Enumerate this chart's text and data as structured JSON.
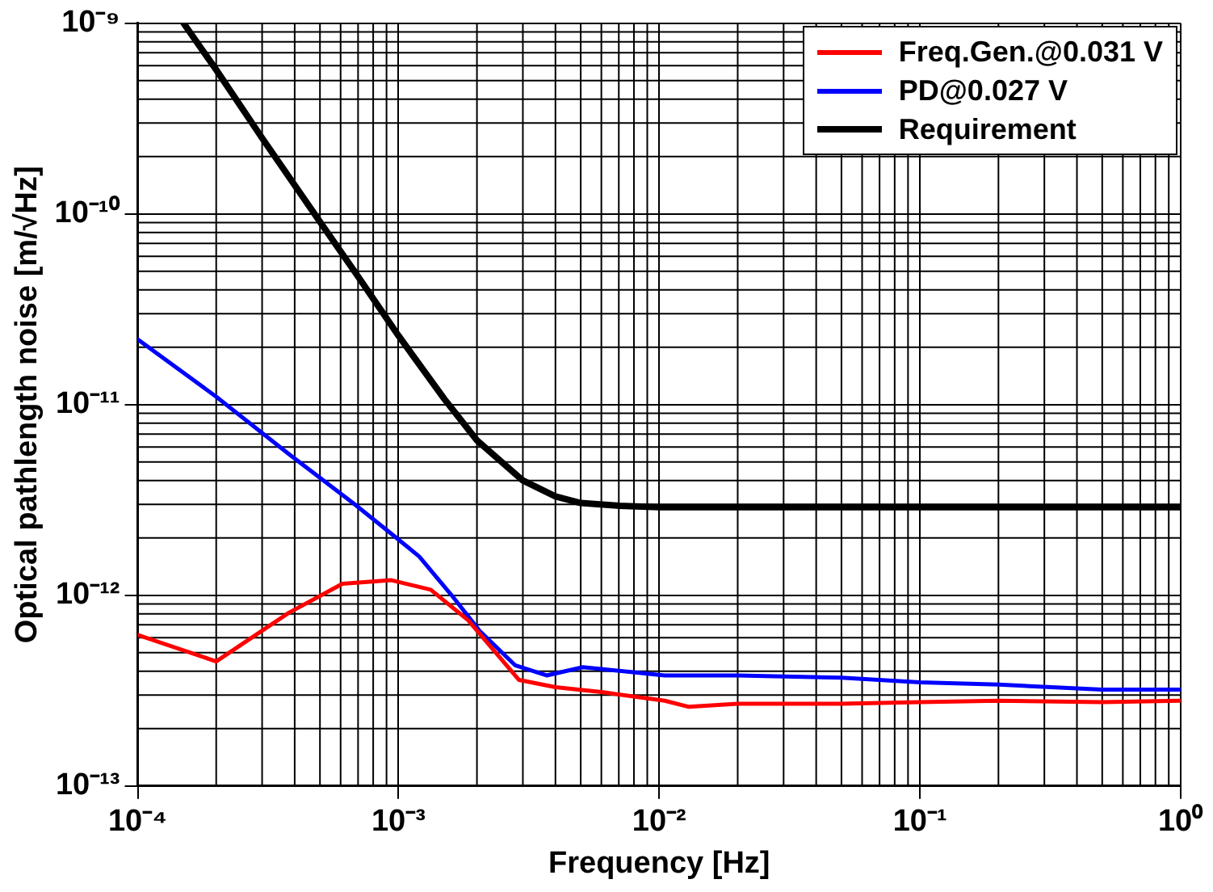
{
  "chart_data": {
    "type": "line",
    "xlabel": "Frequency [Hz]",
    "ylabel": "Optical pathlength noise [m/√Hz]",
    "log": "xy",
    "grid": true,
    "legend": "top right",
    "marker": "none",
    "line_style": "solid",
    "xlim": [
      0.0001,
      1
    ],
    "xticks": [
      {
        "value": 0.0001,
        "label": "10⁻⁴"
      },
      {
        "value": 0.001,
        "label": "10⁻³"
      },
      {
        "value": 0.01,
        "label": "10⁻²"
      },
      {
        "value": 0.1,
        "label": "10⁻¹"
      },
      {
        "value": 1,
        "label": "10⁰"
      }
    ],
    "ylim": [
      1e-13,
      1e-09
    ],
    "yticks": [
      {
        "value": 1e-13,
        "label": "10⁻¹³"
      },
      {
        "value": 1e-12,
        "label": "10⁻¹²"
      },
      {
        "value": 1e-11,
        "label": "10⁻¹¹"
      },
      {
        "value": 1e-10,
        "label": "10⁻¹⁰"
      },
      {
        "value": 1e-09,
        "label": "10⁻⁹"
      }
    ],
    "series": [
      {
        "name": "Freq.Gen.@0.031 V",
        "color": "#ff0000",
        "x": [
          0.0001,
          0.0002,
          0.00038,
          0.00061,
          0.00094,
          0.00133,
          0.00185,
          0.0029,
          0.004,
          0.0061,
          0.0105,
          0.013,
          0.02,
          0.05,
          0.1,
          0.2,
          0.5,
          1
        ],
        "values": [
          6.2e-13,
          4.5e-13,
          8.1e-13,
          1.15e-12,
          1.2e-12,
          1.07e-12,
          7.4e-13,
          3.6e-13,
          3.3e-13,
          3.1e-13,
          2.8e-13,
          2.6e-13,
          2.7e-13,
          2.7e-13,
          2.75e-13,
          2.8e-13,
          2.75e-13,
          2.8e-13
        ]
      },
      {
        "name": "PD@0.027 V",
        "color": "#0000ff",
        "x": [
          0.0001,
          0.0002,
          0.00038,
          0.00068,
          0.00094,
          0.0012,
          0.0016,
          0.00205,
          0.0028,
          0.0037,
          0.0051,
          0.0105,
          0.02,
          0.05,
          0.1,
          0.2,
          0.5,
          1
        ],
        "values": [
          2.2e-11,
          1.1e-11,
          5.5e-12,
          3e-12,
          2.1e-12,
          1.6e-12,
          1e-12,
          6.5e-13,
          4.3e-13,
          3.8e-13,
          4.2e-13,
          3.8e-13,
          3.8e-13,
          3.7e-13,
          3.5e-13,
          3.4e-13,
          3.2e-13,
          3.2e-13
        ]
      },
      {
        "name": "Requirement",
        "color": "#000000",
        "x": [
          0.00015,
          0.0002,
          0.0003,
          0.0005,
          0.0007,
          0.001,
          0.0015,
          0.002,
          0.003,
          0.004,
          0.005,
          0.007,
          0.01,
          1
        ],
        "values": [
          1e-09,
          5.7e-10,
          2.5e-10,
          9.1e-11,
          4.7e-11,
          2.3e-11,
          1.07e-11,
          6.5e-12,
          4e-12,
          3.3e-12,
          3.05e-12,
          2.95e-12,
          2.9e-12,
          2.9e-12
        ]
      }
    ]
  }
}
